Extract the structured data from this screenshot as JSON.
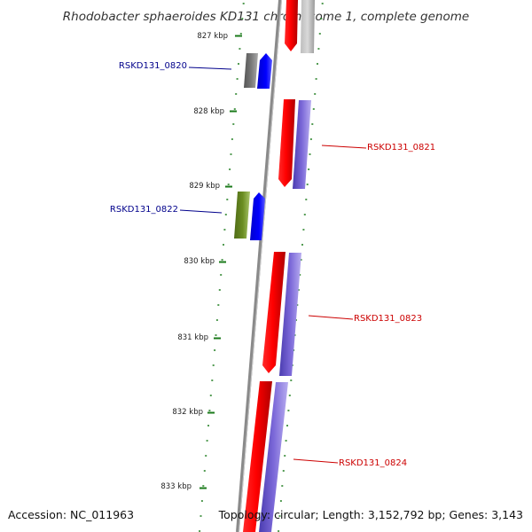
{
  "header": {
    "title": "Rhodobacter sphaeroides KD131 chromosome 1, complete genome"
  },
  "ruler": {
    "ticks": [
      "827 kbp",
      "828 kbp",
      "829 kbp",
      "830 kbp",
      "831 kbp",
      "832 kbp",
      "833 kbp"
    ]
  },
  "genes": [
    {
      "label": "RSKD131_0820",
      "strand": "-",
      "cds_color": "#0000ee",
      "feature_color": "#6d6d6d",
      "label_color": "#00008b"
    },
    {
      "label": "RSKD131_0821",
      "strand": "+",
      "cds_color": "#7b68d8",
      "feature_color": "#ff0000",
      "label_color": "#cc0000"
    },
    {
      "label": "RSKD131_0822",
      "strand": "-",
      "cds_color": "#0000ee",
      "feature_color": "#6b8e23",
      "label_color": "#00008b"
    },
    {
      "label": "RSKD131_0823",
      "strand": "+",
      "cds_color": "#7b68d8",
      "feature_color": "#ff0000",
      "label_color": "#cc0000"
    },
    {
      "label": "RSKD131_0824",
      "strand": "+",
      "cds_color": "#7b68d8",
      "feature_color": "#ff0000",
      "label_color": "#cc0000"
    }
  ],
  "colors": {
    "backbone": "#8a8a8a",
    "tick": "#1a7a1a"
  },
  "footer": {
    "accession": "Accession: NC_011963",
    "topology": "Topology: circular; Length: 3,152,792 bp; Genes: 3,143"
  }
}
